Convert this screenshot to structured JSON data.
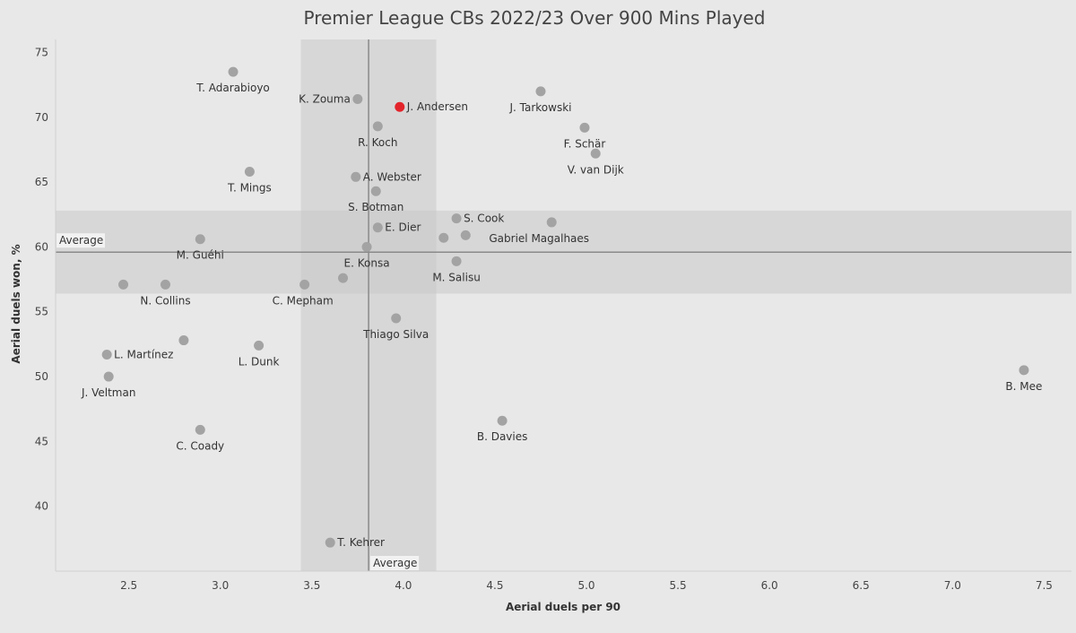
{
  "chart_data": {
    "type": "scatter",
    "title": "Premier League CBs 2022/23 Over 900 Mins Played",
    "xlabel": "Aerial duels per 90",
    "ylabel": "Aerial duels won, %",
    "xlim": [
      2.1,
      7.65
    ],
    "ylim": [
      35,
      76
    ],
    "xticks": [
      2.5,
      3.0,
      3.5,
      4.0,
      4.5,
      5.0,
      5.5,
      6.0,
      6.5,
      7.0,
      7.5
    ],
    "xtick_labels": [
      "2.5",
      "3.0",
      "3.5",
      "4.0",
      "4.5",
      "5.0",
      "5.5",
      "6.0",
      "6.5",
      "7.0",
      "7.5"
    ],
    "yticks": [
      40,
      45,
      50,
      55,
      60,
      65,
      70,
      75
    ],
    "ytick_labels": [
      "40",
      "45",
      "50",
      "55",
      "60",
      "65",
      "70",
      "75"
    ],
    "grid": false,
    "colors": {
      "background": "#e8e8e8",
      "point": "#a3a3a3",
      "highlight": "#e3242b",
      "band": "#c8c8c8",
      "avg_line": "#8a8a8a",
      "text": "#333333"
    },
    "average_x": {
      "value": 3.81,
      "band": [
        3.44,
        4.18
      ],
      "label": "Average"
    },
    "average_y": {
      "value": 59.6,
      "band": [
        56.4,
        62.8
      ],
      "label": "Average"
    },
    "points": [
      {
        "name": "T. Adarabioyo",
        "x": 3.07,
        "y": 73.5
      },
      {
        "name": "K. Zouma",
        "x": 3.75,
        "y": 71.4
      },
      {
        "name": "J. Andersen",
        "x": 3.98,
        "y": 70.8,
        "highlight": true
      },
      {
        "name": "J. Tarkowski",
        "x": 4.75,
        "y": 72.0
      },
      {
        "name": "R. Koch",
        "x": 3.86,
        "y": 69.3
      },
      {
        "name": "F. Schär",
        "x": 4.99,
        "y": 69.2
      },
      {
        "name": "V. van Dijk",
        "x": 5.05,
        "y": 67.2
      },
      {
        "name": "T. Mings",
        "x": 3.16,
        "y": 65.8
      },
      {
        "name": "A. Webster",
        "x": 3.74,
        "y": 65.4
      },
      {
        "name": "S. Botman",
        "x": 3.85,
        "y": 64.3
      },
      {
        "name": "S. Cook",
        "x": 4.29,
        "y": 62.2
      },
      {
        "name": "Gabriel Magalhaes",
        "x": 4.81,
        "y": 61.9
      },
      {
        "name": "E. Dier",
        "x": 3.86,
        "y": 61.5
      },
      {
        "name": "",
        "x": 4.22,
        "y": 60.7
      },
      {
        "name": "",
        "x": 4.34,
        "y": 60.9
      },
      {
        "name": "M. Guéhi",
        "x": 2.89,
        "y": 60.6
      },
      {
        "name": "E. Konsa",
        "x": 3.8,
        "y": 60.0
      },
      {
        "name": "M. Salisu",
        "x": 4.29,
        "y": 58.9
      },
      {
        "name": "",
        "x": 3.67,
        "y": 57.6
      },
      {
        "name": "N. Collins",
        "x": 2.7,
        "y": 57.1
      },
      {
        "name": "",
        "x": 2.47,
        "y": 57.1
      },
      {
        "name": "C. Mepham",
        "x": 3.46,
        "y": 57.1
      },
      {
        "name": "Thiago Silva",
        "x": 3.96,
        "y": 54.5
      },
      {
        "name": "",
        "x": 2.8,
        "y": 52.8
      },
      {
        "name": "L. Dunk",
        "x": 3.21,
        "y": 52.4
      },
      {
        "name": "L. Martínez",
        "x": 2.38,
        "y": 51.7
      },
      {
        "name": "B. Mee",
        "x": 7.39,
        "y": 50.5
      },
      {
        "name": "J. Veltman",
        "x": 2.39,
        "y": 50.0
      },
      {
        "name": "B. Davies",
        "x": 4.54,
        "y": 46.6
      },
      {
        "name": "C. Coady",
        "x": 2.89,
        "y": 45.9
      },
      {
        "name": "T. Kehrer",
        "x": 3.6,
        "y": 37.2
      }
    ]
  }
}
